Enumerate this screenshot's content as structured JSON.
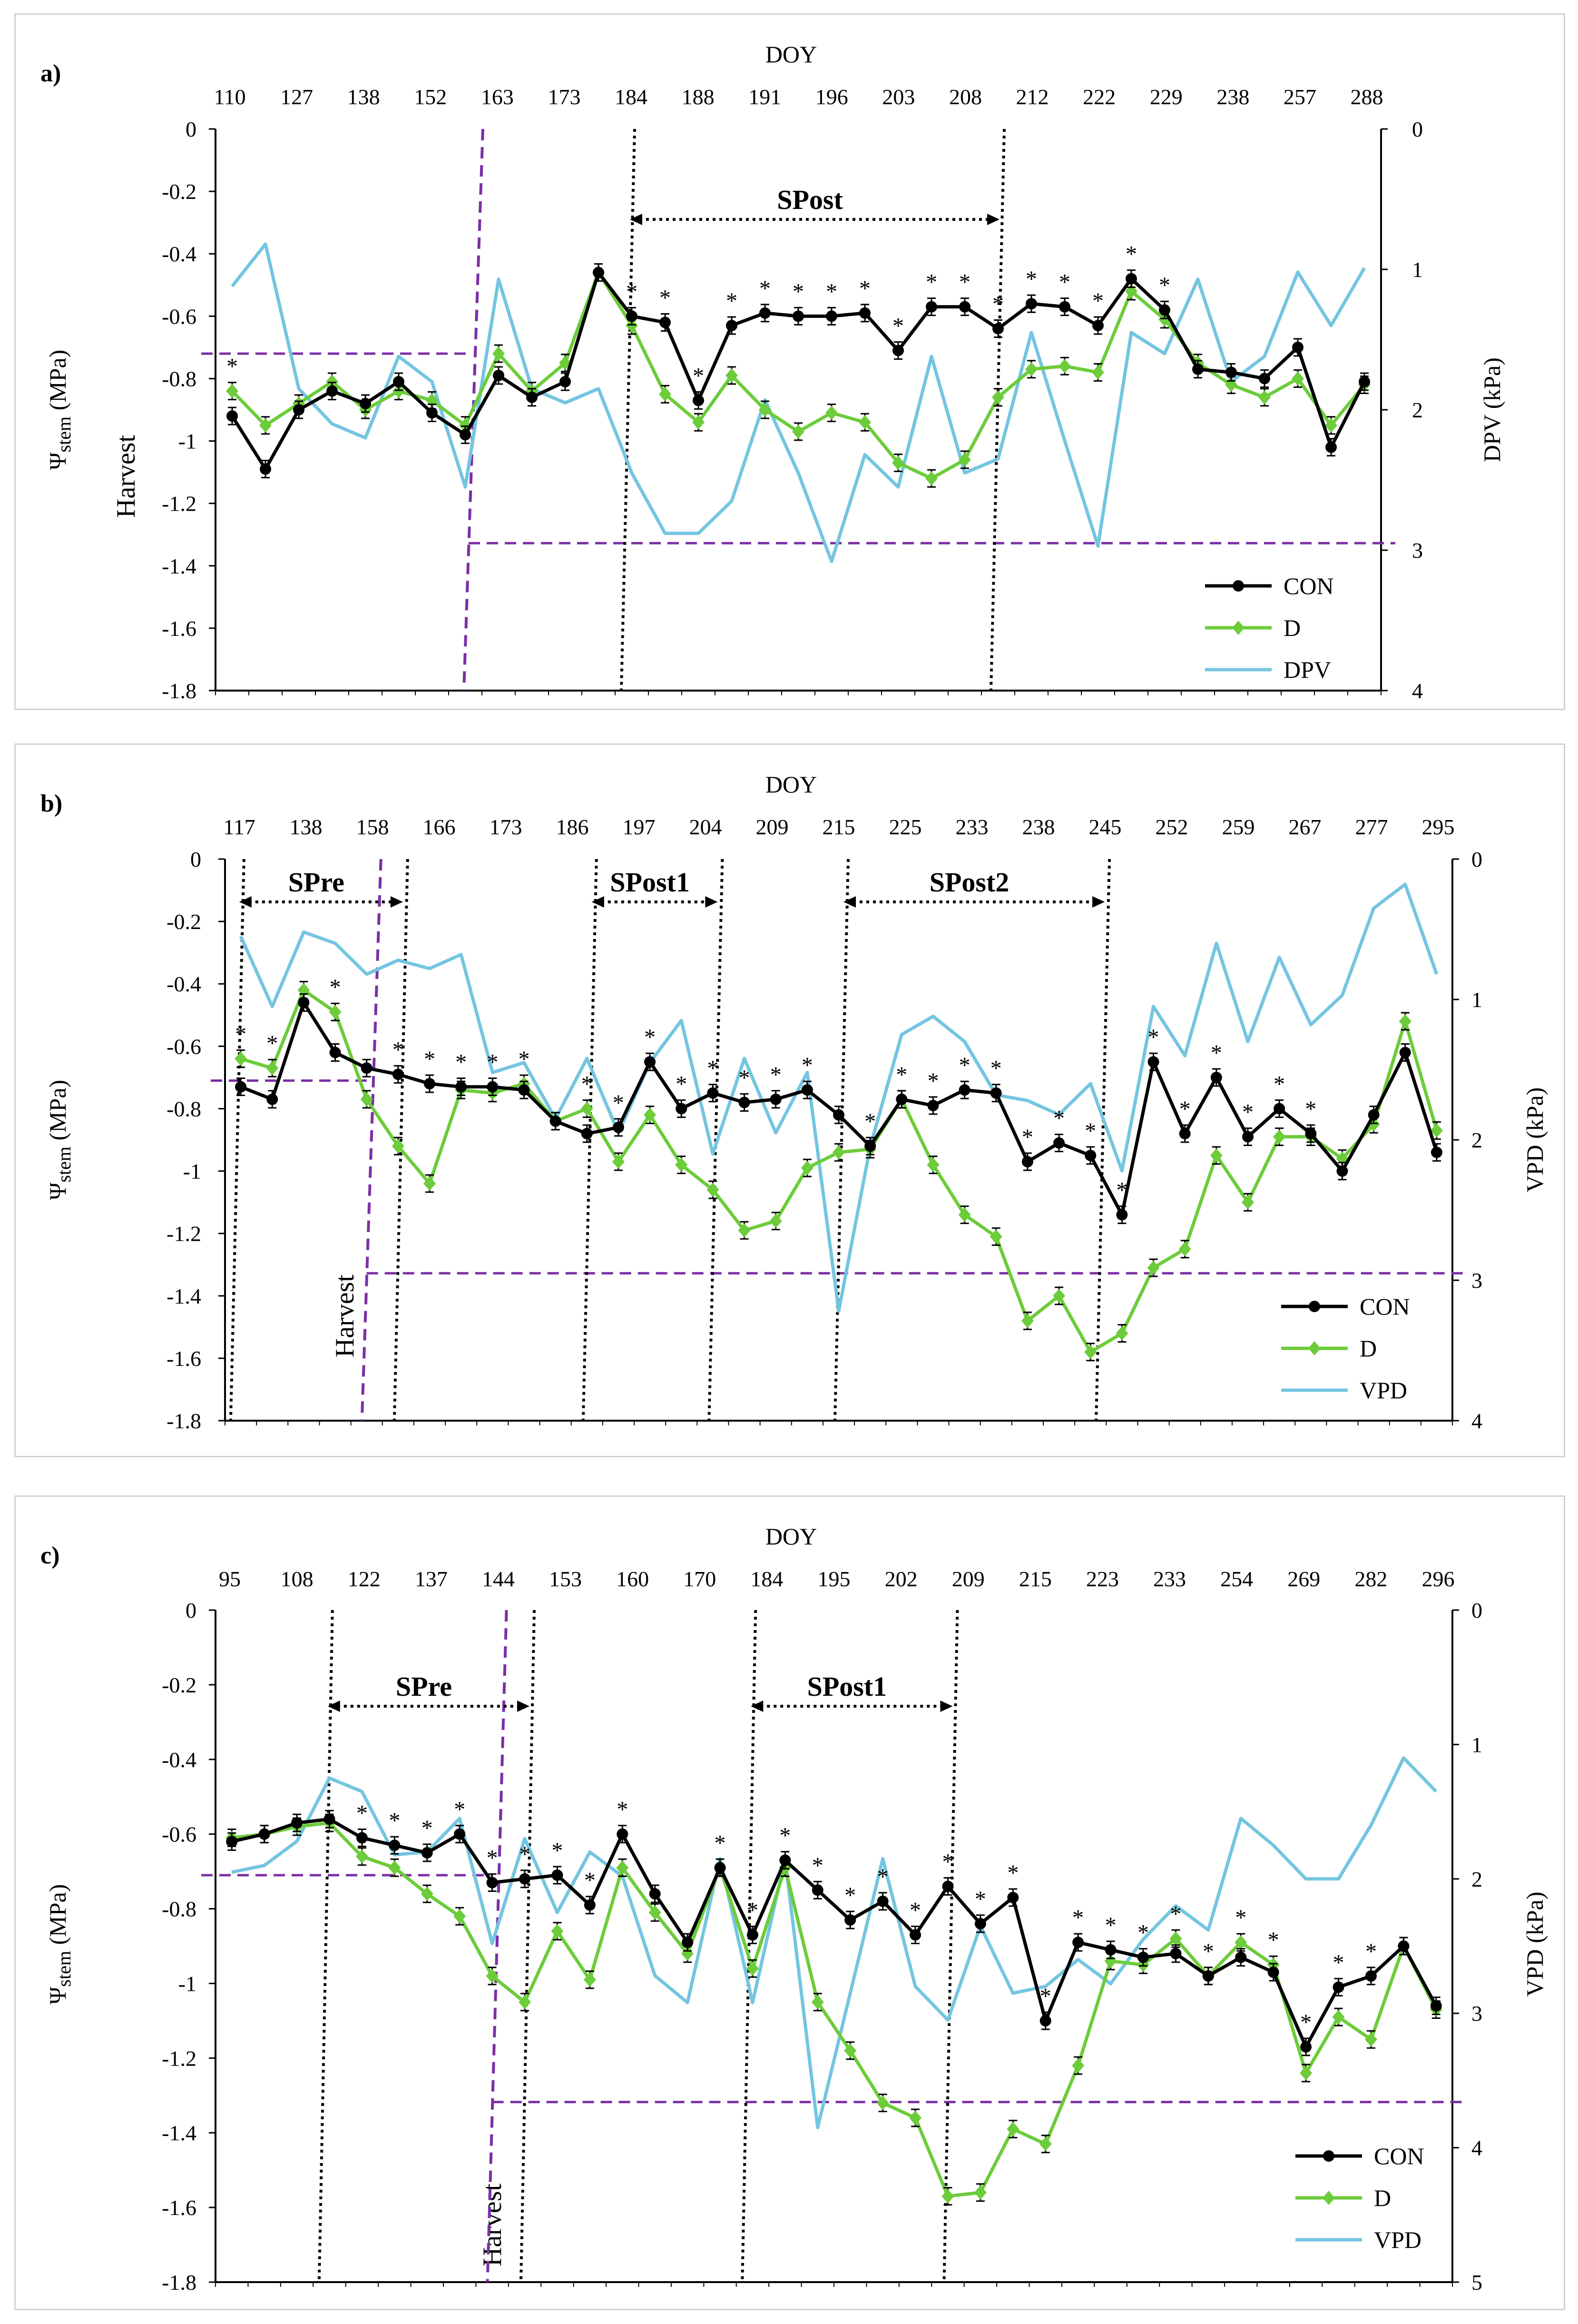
{
  "chart_data": [
    {
      "type": "line",
      "panel_label": "a)",
      "top_axis_title": "DOY",
      "doy_ticks": [
        "110",
        "127",
        "138",
        "152",
        "163",
        "173",
        "184",
        "188",
        "191",
        "196",
        "203",
        "208",
        "212",
        "222",
        "229",
        "238",
        "257",
        "288"
      ],
      "ylabel_left_main": "Ψ",
      "ylabel_left_sub": "stem",
      "ylabel_left_unit": " (MPa)",
      "ylabel_right": "DPV (kPa)",
      "ylim_left": [
        -1.8,
        0
      ],
      "ylim_right": [
        4,
        0
      ],
      "left_ticks": [
        "0",
        "-0.2",
        "-0.4",
        "-0.6",
        "-0.8",
        "-1",
        "-1.2",
        "-1.4",
        "-1.6",
        "-1.8"
      ],
      "right_ticks": [
        "0",
        "1",
        "2",
        "3",
        "4"
      ],
      "harvest_label": "Harvest",
      "harvest_x": 7.6,
      "threshold_left": -0.72,
      "threshold_right": 2.95,
      "periods": [
        {
          "label": "SPost",
          "start": 12.3,
          "end": 23.4
        }
      ],
      "asterisk_x": [
        0,
        12.5,
        13.5,
        14.5,
        15.5,
        16.5,
        17.5,
        18.5,
        19.5,
        20.5,
        21.5,
        22.5,
        23.5,
        24.5,
        25.5,
        26.5,
        27.5,
        28.5
      ],
      "series": [
        {
          "name": "CON",
          "color": "#000000",
          "values": [
            -0.92,
            -1.09,
            -0.9,
            -0.84,
            -0.88,
            -0.81,
            -0.91,
            -0.98,
            -0.79,
            -0.86,
            -0.81,
            -0.46,
            -0.6,
            -0.62,
            -0.87,
            -0.63,
            -0.59,
            -0.6,
            -0.6,
            -0.59,
            -0.71,
            -0.57,
            -0.57,
            -0.64,
            -0.56,
            -0.57,
            -0.63,
            -0.48,
            -0.58,
            -0.77,
            -0.78,
            -0.8,
            -0.7,
            -1.02,
            -0.81
          ]
        },
        {
          "name": "D",
          "color": "#6ccc3a",
          "values": [
            -0.84,
            -0.95,
            -0.88,
            -0.81,
            -0.9,
            -0.84,
            -0.87,
            -0.95,
            -0.72,
            -0.84,
            -0.75,
            -0.46,
            -0.63,
            -0.85,
            -0.94,
            -0.79,
            -0.9,
            -0.97,
            -0.91,
            -0.94,
            -1.07,
            -1.12,
            -1.06,
            -0.86,
            -0.77,
            -0.76,
            -0.78,
            -0.52,
            -0.61,
            -0.75,
            -0.82,
            -0.86,
            -0.8,
            -0.95,
            -0.82
          ]
        },
        {
          "name": "DPV",
          "color": "#74c5e0",
          "values": [
            1.12,
            0.82,
            1.85,
            2.1,
            2.2,
            1.62,
            1.8,
            2.55,
            1.07,
            1.85,
            1.95,
            1.85,
            2.45,
            2.88,
            2.88,
            2.65,
            1.93,
            2.45,
            3.08,
            2.32,
            2.55,
            1.62,
            2.45,
            2.35,
            1.45,
            2.22,
            2.97,
            1.45,
            1.6,
            1.07,
            1.8,
            1.62,
            1.02,
            1.4,
            0.99
          ]
        }
      ]
    },
    {
      "type": "line",
      "panel_label": "b)",
      "top_axis_title": "DOY",
      "doy_ticks": [
        "117",
        "138",
        "158",
        "166",
        "173",
        "186",
        "197",
        "204",
        "209",
        "215",
        "225",
        "233",
        "238",
        "245",
        "252",
        "259",
        "267",
        "277",
        "295"
      ],
      "ylabel_left_main": "Ψ",
      "ylabel_left_sub": "stem",
      "ylabel_left_unit": " (MPa)",
      "ylabel_right": "VPD (kPa)",
      "ylim_left": [
        -1.8,
        0
      ],
      "ylim_right": [
        4,
        0
      ],
      "left_ticks": [
        "0",
        "-0.2",
        "-0.4",
        "-0.6",
        "-0.8",
        "-1",
        "-1.2",
        "-1.4",
        "-1.6",
        "-1.8"
      ],
      "right_ticks": [
        "0",
        "1",
        "2",
        "3",
        "4"
      ],
      "harvest_label": "Harvest",
      "harvest_x": 4.5,
      "threshold_left": -0.71,
      "threshold_right": 2.95,
      "periods": [
        {
          "label": "SPre",
          "start": 0.3,
          "end": 5.5
        },
        {
          "label": "SPost1",
          "start": 11.5,
          "end": 15.5
        },
        {
          "label": "SPost2",
          "start": 19.5,
          "end": 27.8
        }
      ],
      "asterisk_x": [
        0,
        1,
        3,
        5,
        6,
        7,
        8,
        9,
        11,
        12,
        13,
        14,
        15,
        16,
        17,
        18,
        20,
        21,
        22,
        23,
        24,
        25,
        26,
        27,
        28,
        29,
        30,
        31,
        32,
        33,
        34
      ],
      "series": [
        {
          "name": "CON",
          "color": "#000000",
          "values": [
            -0.73,
            -0.77,
            -0.46,
            -0.62,
            -0.67,
            -0.69,
            -0.72,
            -0.73,
            -0.73,
            -0.74,
            -0.84,
            -0.88,
            -0.86,
            -0.65,
            -0.8,
            -0.75,
            -0.78,
            -0.77,
            -0.74,
            -0.82,
            -0.92,
            -0.77,
            -0.79,
            -0.74,
            -0.75,
            -0.97,
            -0.91,
            -0.95,
            -1.14,
            -0.65,
            -0.88,
            -0.7,
            -0.89,
            -0.8,
            -0.88,
            -1.0,
            -0.82,
            -0.62,
            -0.94
          ]
        },
        {
          "name": "D",
          "color": "#6ccc3a",
          "values": [
            -0.64,
            -0.67,
            -0.42,
            -0.49,
            -0.77,
            -0.92,
            -1.04,
            -0.74,
            -0.75,
            -0.72,
            -0.84,
            -0.8,
            -0.97,
            -0.82,
            -0.98,
            -1.06,
            -1.19,
            -1.16,
            -0.99,
            -0.94,
            -0.93,
            -0.77,
            -0.98,
            -1.14,
            -1.21,
            -1.48,
            -1.4,
            -1.58,
            -1.52,
            -1.31,
            -1.25,
            -0.95,
            -1.1,
            -0.89,
            -0.89,
            -0.96,
            -0.85,
            -0.52,
            -0.87
          ]
        },
        {
          "name": "VPD",
          "color": "#74c5e0",
          "values": [
            0.55,
            1.05,
            0.52,
            0.6,
            0.82,
            0.72,
            0.78,
            0.68,
            1.52,
            1.45,
            1.85,
            1.42,
            1.95,
            1.45,
            1.15,
            2.1,
            1.42,
            1.95,
            1.52,
            3.22,
            2.05,
            1.25,
            1.12,
            1.3,
            1.68,
            1.72,
            1.82,
            1.6,
            2.22,
            1.05,
            1.4,
            0.6,
            1.3,
            0.7,
            1.18,
            0.97,
            0.35,
            0.18,
            0.82
          ]
        }
      ]
    },
    {
      "type": "line",
      "panel_label": "c)",
      "top_axis_title": "DOY",
      "doy_ticks": [
        "95",
        "108",
        "122",
        "137",
        "144",
        "153",
        "160",
        "170",
        "184",
        "195",
        "202",
        "209",
        "215",
        "223",
        "233",
        "254",
        "269",
        "282",
        "296"
      ],
      "ylabel_left_main": "Ψ",
      "ylabel_left_sub": "stem",
      "ylabel_left_unit": " (MPa)",
      "ylabel_right": "VPD (kPa)",
      "ylim_left": [
        -1.8,
        0
      ],
      "ylim_right": [
        5,
        0
      ],
      "left_ticks": [
        "0",
        "-0.2",
        "-0.4",
        "-0.6",
        "-0.8",
        "-1",
        "-1.2",
        "-1.4",
        "-1.6",
        "-1.8"
      ],
      "right_ticks": [
        "0",
        "1",
        "2",
        "3",
        "4",
        "5"
      ],
      "harvest_label": "Harvest",
      "harvest_x": 8.5,
      "threshold_left": -0.71,
      "threshold_right": 3.66,
      "periods": [
        {
          "label": "SPre",
          "start": 3.3,
          "end": 9.5
        },
        {
          "label": "SPost1",
          "start": 16.3,
          "end": 22.5
        }
      ],
      "asterisk_x": [
        4,
        5,
        6,
        7,
        8,
        9,
        10,
        11,
        12,
        15,
        16,
        17,
        18,
        19,
        20,
        21,
        22,
        23,
        24,
        25,
        26,
        27,
        28,
        29,
        30,
        31,
        32,
        33,
        34,
        35
      ],
      "series": [
        {
          "name": "CON",
          "color": "#000000",
          "values": [
            -0.62,
            -0.6,
            -0.57,
            -0.56,
            -0.61,
            -0.63,
            -0.65,
            -0.6,
            -0.73,
            -0.72,
            -0.71,
            -0.79,
            -0.6,
            -0.76,
            -0.89,
            -0.69,
            -0.87,
            -0.67,
            -0.75,
            -0.83,
            -0.78,
            -0.87,
            -0.74,
            -0.84,
            -0.77,
            -1.1,
            -0.89,
            -0.91,
            -0.93,
            -0.92,
            -0.98,
            -0.93,
            -0.97,
            -1.17,
            -1.01,
            -0.98,
            -0.9,
            -1.06
          ]
        },
        {
          "name": "D",
          "color": "#6ccc3a",
          "values": [
            -0.61,
            -0.6,
            -0.58,
            -0.57,
            -0.66,
            -0.69,
            -0.76,
            -0.82,
            -0.98,
            -1.05,
            -0.86,
            -0.99,
            -0.69,
            -0.81,
            -0.92,
            -0.69,
            -0.96,
            -0.69,
            -1.05,
            -1.18,
            -1.32,
            -1.36,
            -1.57,
            -1.56,
            -1.39,
            -1.43,
            -1.22,
            -0.94,
            -0.95,
            -0.88,
            -0.98,
            -0.89,
            -0.95,
            -1.24,
            -1.09,
            -1.15,
            -0.9,
            -1.07
          ]
        },
        {
          "name": "VPD",
          "color": "#74c5e0",
          "values": [
            1.95,
            1.9,
            1.72,
            1.25,
            1.35,
            1.82,
            1.8,
            1.55,
            2.48,
            1.7,
            2.25,
            1.8,
            1.98,
            2.72,
            2.92,
            1.85,
            2.92,
            1.85,
            3.85,
            2.85,
            1.85,
            2.8,
            3.05,
            2.35,
            2.85,
            2.8,
            2.6,
            2.78,
            2.45,
            2.2,
            2.38,
            1.55,
            1.75,
            2.0,
            2.0,
            1.6,
            1.1,
            1.35
          ]
        }
      ]
    }
  ]
}
